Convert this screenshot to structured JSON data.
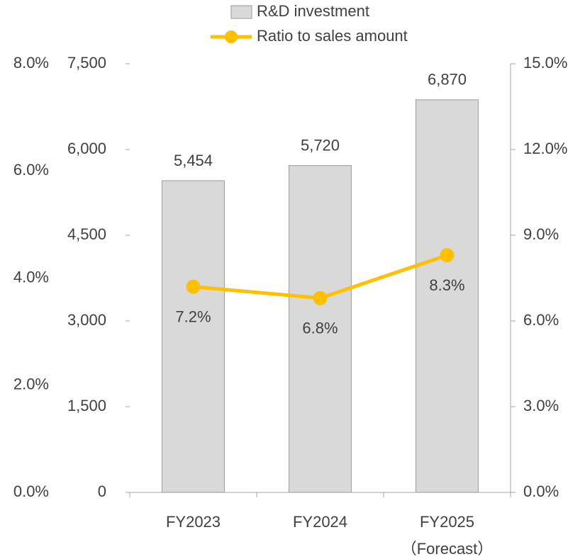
{
  "chart_data": {
    "type": "bar",
    "categories": [
      "FY2023",
      "FY2024",
      "FY2025\n（Forecast）"
    ],
    "series": [
      {
        "name": "R&D investment",
        "type": "bar",
        "color": "#d9d9d9",
        "values": [
          5454,
          5720,
          6870
        ],
        "value_labels": [
          "5,454",
          "5,720",
          "6,870"
        ]
      },
      {
        "name": "Ratio to sales amount",
        "type": "line",
        "axis": "y2",
        "color": "#ffc000",
        "values": [
          7.2,
          6.8,
          8.3
        ],
        "value_labels": [
          "7.2%",
          "6.8%",
          "8.3%"
        ]
      }
    ],
    "ylim": [
      0,
      7500
    ],
    "yticks": [
      0,
      {
        "value": 1500,
        "label": "1,500"
      },
      {
        "value": 3000,
        "label": "3,000"
      },
      {
        "value": 4500,
        "label": "4,500"
      },
      {
        "value": 6000,
        "label": "6,000"
      },
      {
        "value": 7500,
        "label": "7,500"
      }
    ],
    "y2lim": [
      0,
      15
    ],
    "y2ticks": [
      {
        "value": 0,
        "label": "0.0%"
      },
      {
        "value": 3,
        "label": "3.0%"
      },
      {
        "value": 6,
        "label": "6.0%"
      },
      {
        "value": 9,
        "label": "9.0%"
      },
      {
        "value": 12,
        "label": "12.0%"
      },
      {
        "value": 15,
        "label": "15.0%"
      }
    ],
    "y3lim": [
      0,
      8
    ],
    "y3ticks": [
      {
        "value": 0,
        "label": "0.0%"
      },
      {
        "value": 2,
        "label": "2.0%"
      },
      {
        "value": 4,
        "label": "4.0%"
      },
      {
        "value": 6,
        "label": "6.0%"
      },
      {
        "value": 8,
        "label": "8.0%"
      }
    ]
  }
}
